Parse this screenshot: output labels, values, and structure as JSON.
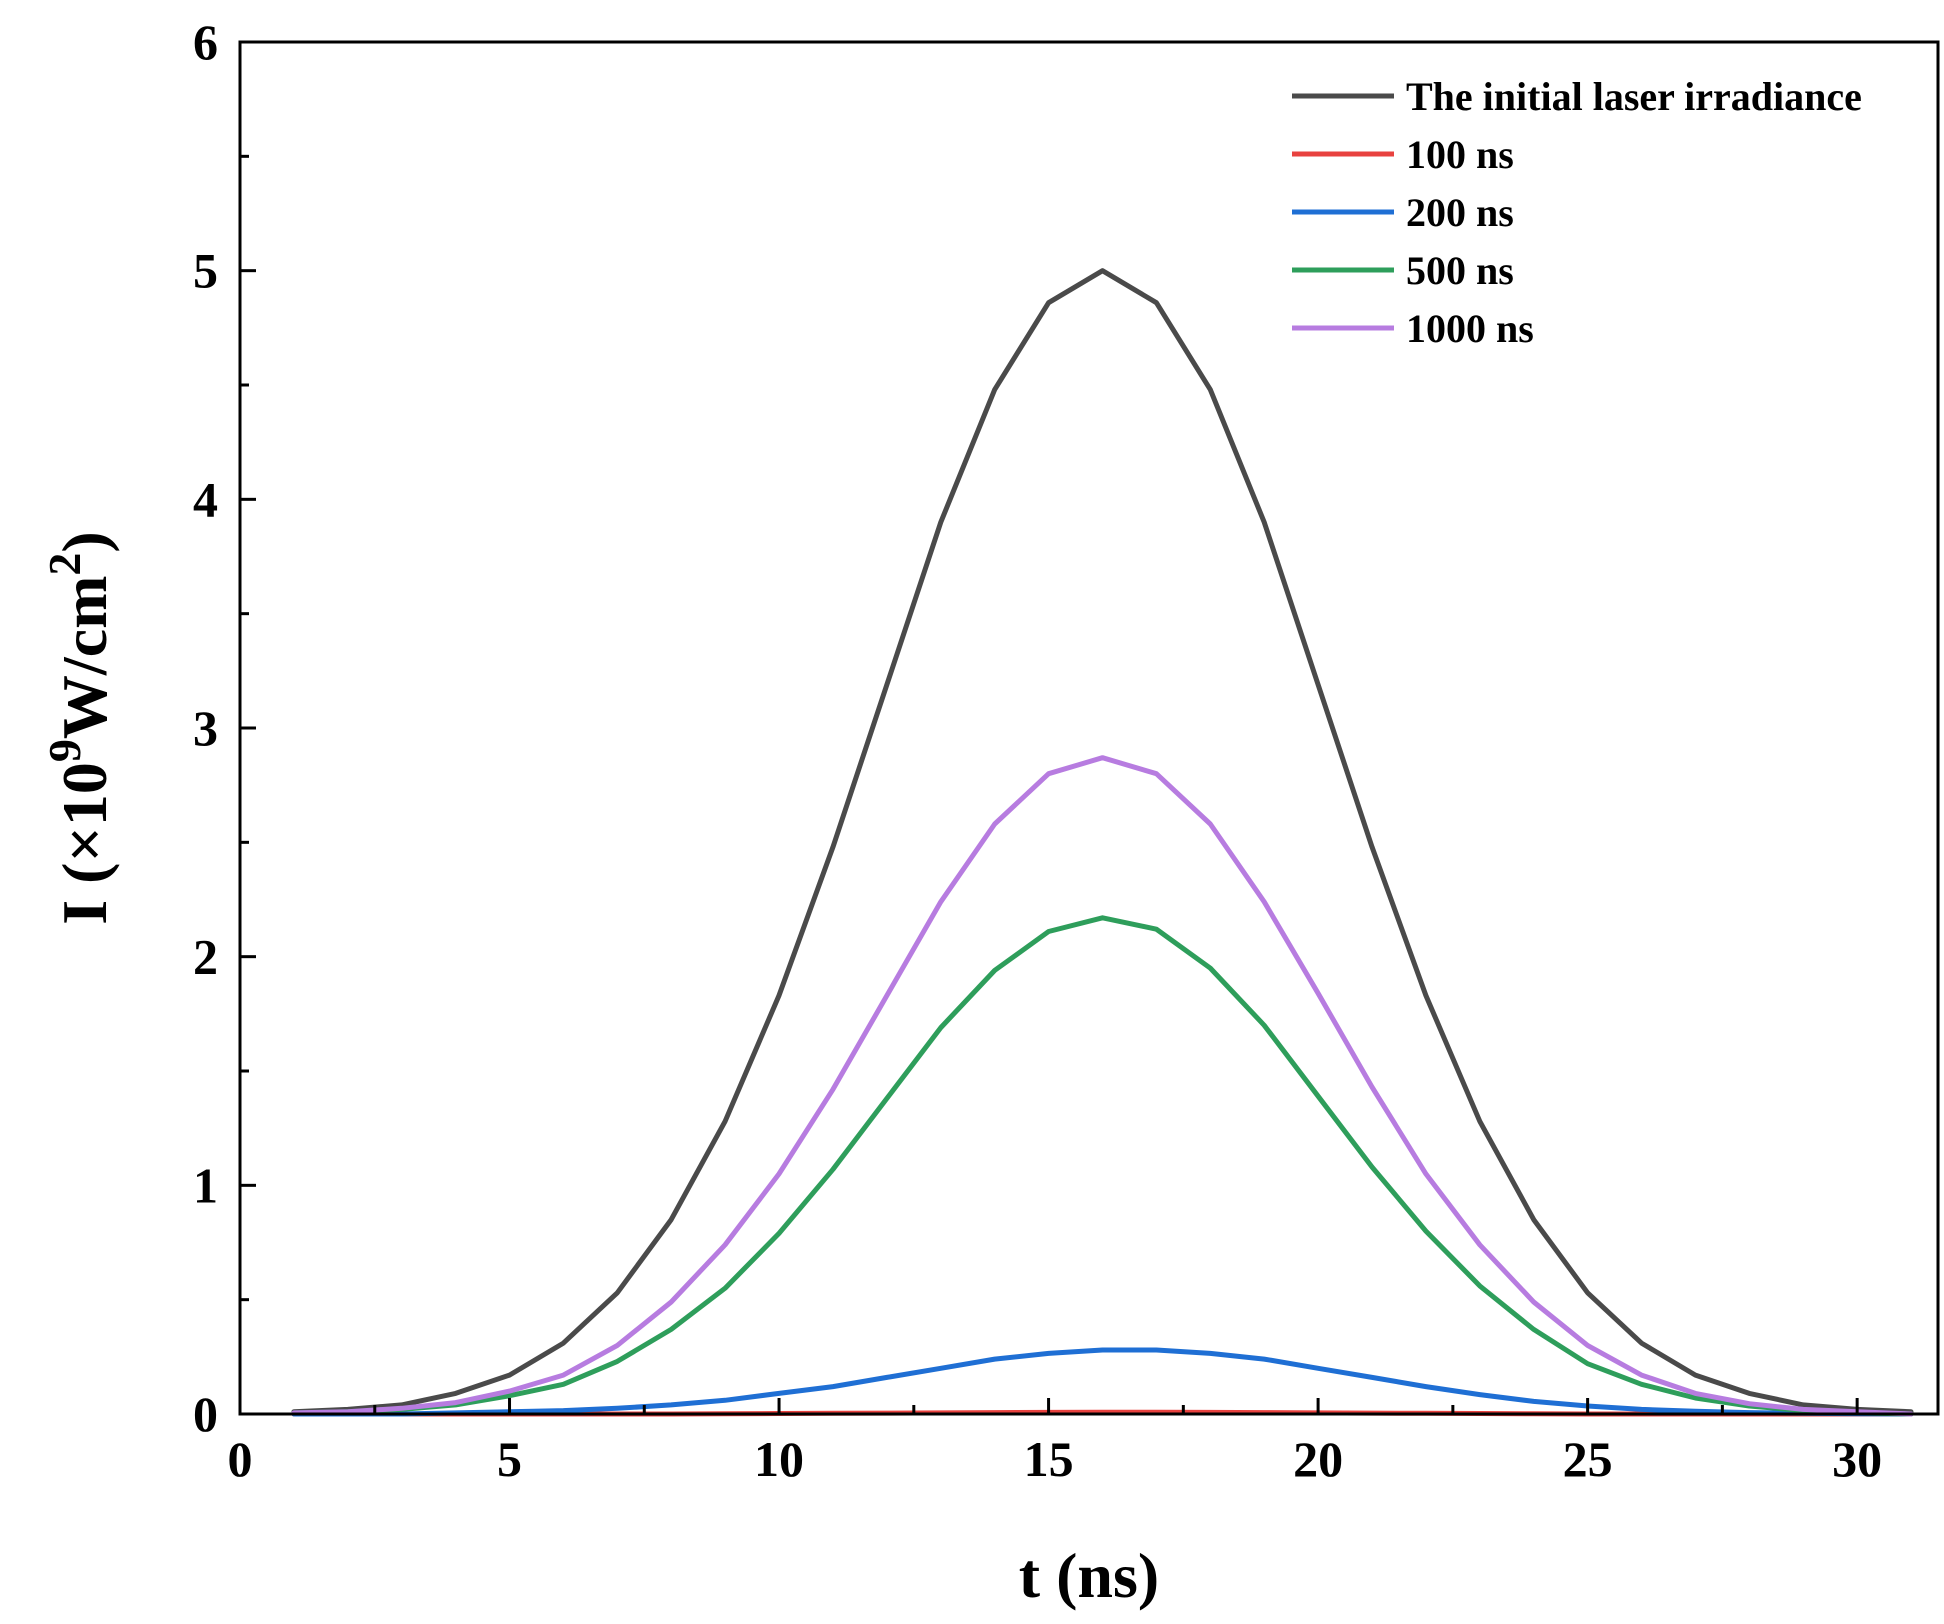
{
  "chart_data": {
    "type": "line",
    "title": "",
    "xlabel": "t (ns)",
    "ylabel": {
      "prefix": "I (×10",
      "exponent": "9",
      "unit": "W/cm",
      "unit_exponent": "2",
      "suffix": ")"
    },
    "xlim": [
      0,
      31.5
    ],
    "ylim": [
      0,
      6
    ],
    "x_ticks": [
      0,
      5,
      10,
      15,
      20,
      25,
      30
    ],
    "y_ticks": [
      0,
      1,
      2,
      3,
      4,
      5,
      6
    ],
    "x_tick_labels": [
      "0",
      "5",
      "10",
      "15",
      "20",
      "25",
      "30"
    ],
    "y_tick_labels": [
      "0",
      "1",
      "2",
      "3",
      "4",
      "5",
      "6"
    ],
    "x_minor_ticks": [
      2.5,
      7.5,
      12.5,
      17.5,
      22.5,
      27.5
    ],
    "y_minor_ticks": [
      0.5,
      1.5,
      2.5,
      3.5,
      4.5,
      5.5
    ],
    "grid": false,
    "legend_position": "top-right",
    "x": [
      1,
      2,
      3,
      4,
      5,
      6,
      7,
      8,
      9,
      10,
      11,
      12,
      13,
      14,
      15,
      16,
      17,
      18,
      19,
      20,
      21,
      22,
      23,
      24,
      25,
      26,
      27,
      28,
      29,
      30,
      31
    ],
    "series": [
      {
        "name": "The initial laser irradiance",
        "color": "#4a4a4a",
        "values": [
          0.01,
          0.02,
          0.04,
          0.09,
          0.17,
          0.31,
          0.53,
          0.85,
          1.28,
          1.83,
          2.48,
          3.19,
          3.9,
          4.48,
          4.86,
          5.0,
          4.86,
          4.48,
          3.9,
          3.19,
          2.48,
          1.83,
          1.28,
          0.85,
          0.53,
          0.31,
          0.17,
          0.09,
          0.04,
          0.02,
          0.01
        ]
      },
      {
        "name": "100 ns",
        "color": "#e8423f",
        "values": [
          0.0,
          0.0,
          0.0,
          0.0,
          0.0,
          0.0,
          0.0,
          0.0,
          0.001,
          0.002,
          0.003,
          0.004,
          0.005,
          0.006,
          0.007,
          0.008,
          0.008,
          0.007,
          0.006,
          0.005,
          0.004,
          0.003,
          0.002,
          0.001,
          0.0,
          0.0,
          0.0,
          0.0,
          0.0,
          0.0,
          0.0
        ]
      },
      {
        "name": "200 ns",
        "color": "#1f6fd4",
        "values": [
          0.0,
          0.0,
          0.0,
          0.005,
          0.01,
          0.015,
          0.025,
          0.04,
          0.06,
          0.09,
          0.12,
          0.16,
          0.2,
          0.24,
          0.265,
          0.28,
          0.28,
          0.265,
          0.24,
          0.2,
          0.16,
          0.12,
          0.085,
          0.055,
          0.035,
          0.02,
          0.012,
          0.006,
          0.003,
          0.001,
          0.0
        ]
      },
      {
        "name": "500 ns",
        "color": "#2e9e5b",
        "values": [
          0.005,
          0.01,
          0.02,
          0.04,
          0.08,
          0.13,
          0.23,
          0.37,
          0.55,
          0.79,
          1.07,
          1.38,
          1.69,
          1.94,
          2.11,
          2.17,
          2.12,
          1.95,
          1.7,
          1.39,
          1.08,
          0.8,
          0.56,
          0.37,
          0.22,
          0.13,
          0.07,
          0.035,
          0.015,
          0.005,
          0.0
        ]
      },
      {
        "name": "1000 ns",
        "color": "#b77ce0",
        "values": [
          0.005,
          0.01,
          0.025,
          0.05,
          0.1,
          0.17,
          0.3,
          0.49,
          0.74,
          1.05,
          1.42,
          1.83,
          2.24,
          2.58,
          2.8,
          2.87,
          2.8,
          2.58,
          2.24,
          1.84,
          1.43,
          1.05,
          0.74,
          0.49,
          0.3,
          0.17,
          0.09,
          0.045,
          0.02,
          0.01,
          0.0
        ]
      }
    ]
  }
}
